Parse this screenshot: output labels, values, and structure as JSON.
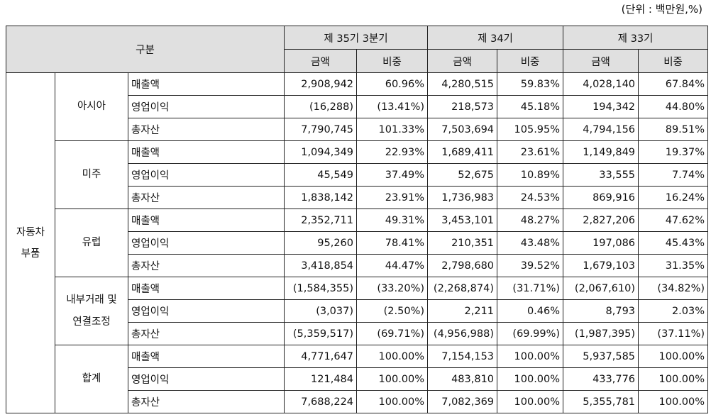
{
  "unit_label": "(단위 : 백만원,%)",
  "header": {
    "category": "구분",
    "periods": [
      "제 35기 3분기",
      "제 34기",
      "제 33기"
    ],
    "sub_cols": [
      "금액",
      "비중",
      "금액",
      "비중",
      "금액",
      "비중"
    ]
  },
  "segment": {
    "line1": "자동차",
    "line2": "부품"
  },
  "groups": [
    {
      "name_lines": [
        "아시아"
      ],
      "rows": [
        {
          "item": "매출액",
          "values": [
            "2,908,942",
            "60.96%",
            "4,280,515",
            "59.83%",
            "4,028,140",
            "67.84%"
          ]
        },
        {
          "item": "영업이익",
          "values": [
            "(16,288)",
            "(13.41%)",
            "218,573",
            "45.18%",
            "194,342",
            "44.80%"
          ]
        },
        {
          "item": "총자산",
          "values": [
            "7,790,745",
            "101.33%",
            "7,503,694",
            "105.95%",
            "4,794,156",
            "89.51%"
          ]
        }
      ]
    },
    {
      "name_lines": [
        "미주"
      ],
      "rows": [
        {
          "item": "매출액",
          "values": [
            "1,094,349",
            "22.93%",
            "1,689,411",
            "23.61%",
            "1,149,849",
            "19.37%"
          ]
        },
        {
          "item": "영업이익",
          "values": [
            "45,549",
            "37.49%",
            "52,675",
            "10.89%",
            "33,555",
            "7.74%"
          ]
        },
        {
          "item": "총자산",
          "values": [
            "1,838,142",
            "23.91%",
            "1,736,983",
            "24.53%",
            "869,916",
            "16.24%"
          ]
        }
      ]
    },
    {
      "name_lines": [
        "유럽"
      ],
      "rows": [
        {
          "item": "매출액",
          "values": [
            "2,352,711",
            "49.31%",
            "3,453,101",
            "48.27%",
            "2,827,206",
            "47.62%"
          ]
        },
        {
          "item": "영업이익",
          "values": [
            "95,260",
            "78.41%",
            "210,351",
            "43.48%",
            "197,086",
            "45.43%"
          ]
        },
        {
          "item": "총자산",
          "values": [
            "3,418,854",
            "44.47%",
            "2,798,680",
            "39.52%",
            "1,679,103",
            "31.35%"
          ]
        }
      ]
    },
    {
      "name_lines": [
        "내부거래 및",
        "연결조정"
      ],
      "rows": [
        {
          "item": "매출액",
          "values": [
            "(1,584,355)",
            "(33.20%)",
            "(2,268,874)",
            "(31.71%)",
            "(2,067,610)",
            "(34.82%)"
          ]
        },
        {
          "item": "영업이익",
          "values": [
            "(3,037)",
            "(2.50%)",
            "2,211",
            "0.46%",
            "8,793",
            "2.03%"
          ]
        },
        {
          "item": "총자산",
          "values": [
            "(5,359,517)",
            "(69.71%)",
            "(4,956,988)",
            "(69.99%)",
            "(1,987,395)",
            "(37.11%)"
          ]
        }
      ]
    },
    {
      "name_lines": [
        "합계"
      ],
      "rows": [
        {
          "item": "매출액",
          "values": [
            "4,771,647",
            "100.00%",
            "7,154,153",
            "100.00%",
            "5,937,585",
            "100.00%"
          ]
        },
        {
          "item": "영업이익",
          "values": [
            "121,484",
            "100.00%",
            "483,810",
            "100.00%",
            "433,776",
            "100.00%"
          ]
        },
        {
          "item": "총자산",
          "values": [
            "7,688,224",
            "100.00%",
            "7,082,369",
            "100.00%",
            "5,355,781",
            "100.00%"
          ]
        }
      ]
    }
  ]
}
